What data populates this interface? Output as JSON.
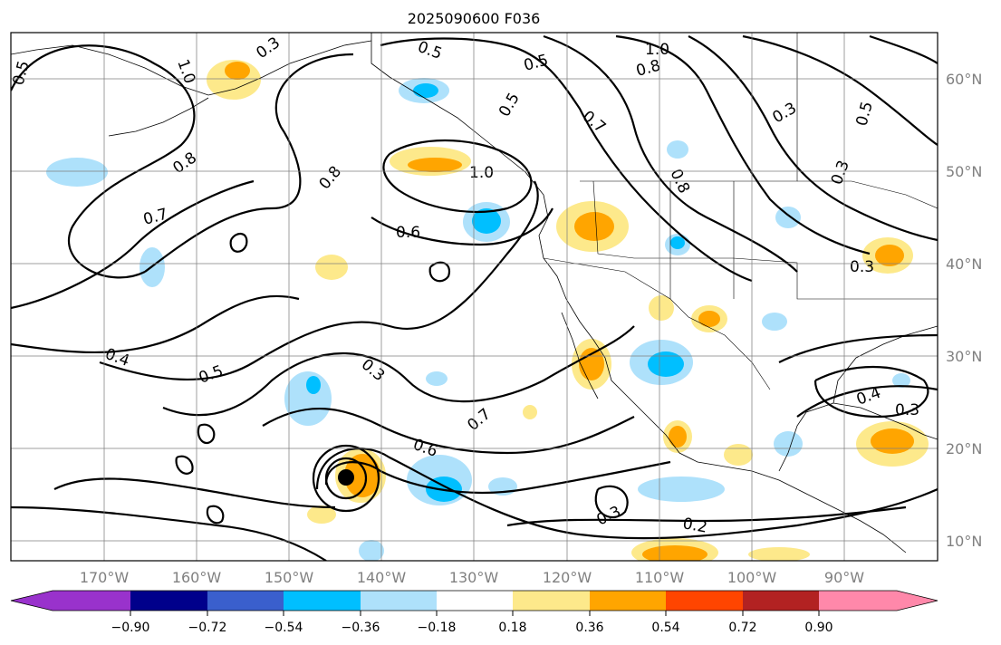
{
  "title": "2025090600 F036",
  "map": {
    "lon_labels": [
      "170°W",
      "160°W",
      "150°W",
      "140°W",
      "130°W",
      "120°W",
      "110°W",
      "100°W",
      "90°W"
    ],
    "lat_labels": [
      "60°N",
      "50°N",
      "40°N",
      "30°N",
      "20°N",
      "10°N"
    ]
  },
  "colorbar": {
    "ticks": [
      "−0.90",
      "−0.72",
      "−0.54",
      "−0.36",
      "−0.18",
      "0.18",
      "0.36",
      "0.54",
      "0.72",
      "0.90"
    ],
    "colors": [
      "#9932cc",
      "#00008b",
      "#3a5fcd",
      "#00bfff",
      "#aee1fb",
      "#ffffff",
      "#fde98b",
      "#ffa500",
      "#ff4500",
      "#b22222",
      "#ff88aa"
    ]
  },
  "contour_labels": [
    "0.5",
    "0.3",
    "1.0",
    "0.8",
    "0.6",
    "0.7",
    "0.4",
    "0.2"
  ],
  "colors": {
    "positive_light": "#fde98b",
    "positive_mid": "#ffa500",
    "negative_light": "#aee1fb",
    "negative_mid": "#00bfff"
  }
}
